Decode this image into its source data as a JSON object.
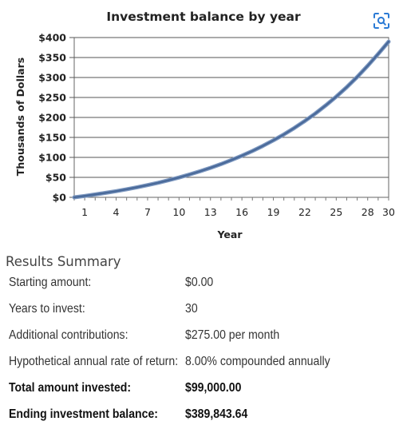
{
  "chart_data": {
    "type": "line",
    "title": "Investment balance by year",
    "xlabel": "Year",
    "ylabel": "Thousands of Dollars",
    "x_ticks": [
      1,
      4,
      7,
      10,
      13,
      16,
      19,
      22,
      25,
      28,
      30
    ],
    "y_ticks": [
      "$0",
      "$50",
      "$100",
      "$150",
      "$200",
      "$250",
      "$300",
      "$350",
      "$400"
    ],
    "ylim": [
      0,
      400
    ],
    "xlim": [
      0,
      30
    ],
    "grid": true,
    "series": [
      {
        "color": "#4a6a9a",
        "x": [
          0,
          1,
          2,
          3,
          4,
          5,
          6,
          7,
          8,
          9,
          10,
          11,
          12,
          13,
          14,
          15,
          16,
          17,
          18,
          19,
          20,
          21,
          22,
          23,
          24,
          25,
          26,
          27,
          28,
          29,
          30
        ],
        "values": [
          0,
          3.4,
          7.1,
          11.1,
          15.4,
          20.1,
          25.1,
          30.6,
          36.5,
          42.8,
          49.7,
          57.1,
          65.1,
          73.8,
          83.1,
          93.3,
          104.2,
          116.0,
          128.8,
          142.6,
          157.5,
          173.6,
          191.0,
          209.8,
          230.1,
          252.1,
          275.8,
          301.4,
          329.1,
          359.0,
          389.8
        ]
      }
    ]
  },
  "summary": {
    "title": "Results Summary",
    "rows": [
      {
        "label": "Starting amount:",
        "value": "$0.00",
        "bold": false
      },
      {
        "label": "Years to invest:",
        "value": "30",
        "bold": false
      },
      {
        "label": "Additional contributions:",
        "value": "$275.00 per month",
        "bold": false
      },
      {
        "label": "Hypothetical annual rate of return:",
        "value": "8.00% compounded annually",
        "bold": false
      },
      {
        "label": "Total amount invested:",
        "value": "$99,000.00",
        "bold": true
      },
      {
        "label": "Ending investment balance:",
        "value": "$389,843.64",
        "bold": true
      }
    ]
  },
  "icons": {
    "scan_icon": "scan-magnify-icon",
    "accent": "#2a7ad5"
  }
}
